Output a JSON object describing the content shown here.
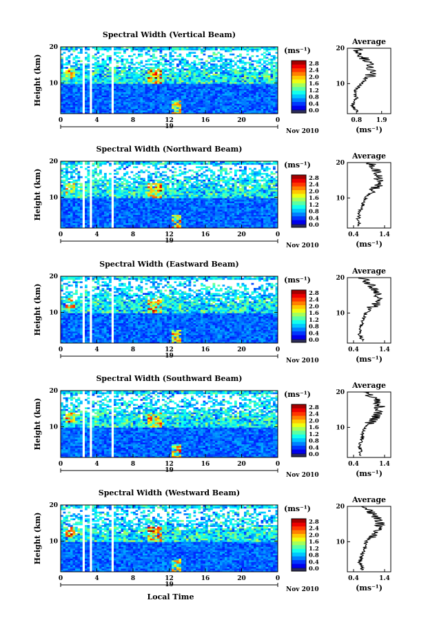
{
  "chart_data": [
    {
      "type": "heatmap",
      "title": "Spectral Width (Vertical Beam)",
      "ylabel": "Height (km)",
      "yticks": [
        10,
        20
      ],
      "xticks": [
        "0",
        "4",
        "8",
        "12",
        "16",
        "20",
        "0"
      ],
      "day_label": "19",
      "date_label": "Nov 2010",
      "colorbar_unit": "(ms⁻¹)",
      "colorbar_ticks": [
        "2.8",
        "2.4",
        "2.0",
        "1.6",
        "1.2",
        "0.8",
        "0.4",
        "0.0"
      ],
      "xlim": [
        0,
        24
      ],
      "ylim": [
        1.5,
        20
      ],
      "data_gaps_hours": [
        [
          2.3,
          2.6
        ],
        [
          3.2,
          3.5
        ],
        [
          5.5,
          5.8
        ],
        [
          17.5,
          17.7
        ]
      ],
      "profile": {
        "title": "Average",
        "xticks": [
          "0.8",
          "1.9"
        ],
        "xlim": [
          0.4,
          2.3
        ],
        "xlabel": "(ms⁻¹)",
        "yticks": [
          10,
          20
        ],
        "heights_km": [
          2,
          4,
          6,
          8,
          10,
          12,
          14,
          16,
          18,
          20
        ],
        "values": [
          0.85,
          0.6,
          0.8,
          0.75,
          1.0,
          1.4,
          1.5,
          1.3,
          1.0,
          0.8
        ]
      }
    },
    {
      "type": "heatmap",
      "title": "Spectral Width (Northward Beam)",
      "ylabel": "Height (km)",
      "yticks": [
        10,
        20
      ],
      "xticks": [
        "0",
        "4",
        "8",
        "12",
        "16",
        "20",
        "0"
      ],
      "day_label": "19",
      "date_label": "Nov 2010",
      "colorbar_unit": "(ms⁻¹)",
      "colorbar_ticks": [
        "2.8",
        "2.4",
        "2.0",
        "1.6",
        "1.2",
        "0.8",
        "0.4",
        "0.0"
      ],
      "xlim": [
        0,
        24
      ],
      "ylim": [
        1.5,
        20
      ],
      "data_gaps_hours": [
        [
          2.3,
          2.6
        ],
        [
          3.2,
          3.5
        ],
        [
          5.5,
          5.8
        ],
        [
          17.5,
          17.7
        ]
      ],
      "profile": {
        "title": "Average",
        "xticks": [
          "0.4",
          "1.4"
        ],
        "xlim": [
          0.2,
          1.6
        ],
        "xlabel": "(ms⁻¹)",
        "yticks": [
          10,
          20
        ],
        "heights_km": [
          2,
          4,
          6,
          8,
          10,
          12,
          14,
          16,
          18,
          20
        ],
        "values": [
          0.6,
          0.55,
          0.6,
          0.7,
          0.8,
          1.0,
          1.25,
          1.2,
          1.1,
          0.9
        ]
      }
    },
    {
      "type": "heatmap",
      "title": "Spectral Width (Eastward Beam)",
      "ylabel": "Height (km)",
      "yticks": [
        10,
        20
      ],
      "xticks": [
        "0",
        "4",
        "8",
        "12",
        "16",
        "20",
        "0"
      ],
      "day_label": "19",
      "date_label": "Nov 2010",
      "colorbar_unit": "(ms⁻¹)",
      "colorbar_ticks": [
        "2.8",
        "2.4",
        "2.0",
        "1.6",
        "1.2",
        "0.8",
        "0.4",
        "0.0"
      ],
      "xlim": [
        0,
        24
      ],
      "ylim": [
        1.5,
        20
      ],
      "data_gaps_hours": [
        [
          2.3,
          2.6
        ],
        [
          3.2,
          3.5
        ],
        [
          5.5,
          5.8
        ],
        [
          17.5,
          17.7
        ]
      ],
      "profile": {
        "title": "Average",
        "xticks": [
          "0.4",
          "1.4"
        ],
        "xlim": [
          0.2,
          1.6
        ],
        "xlabel": "(ms⁻¹)",
        "yticks": [
          10,
          20
        ],
        "heights_km": [
          2,
          4,
          6,
          8,
          10,
          12,
          14,
          16,
          18,
          20
        ],
        "values": [
          0.7,
          0.6,
          0.65,
          0.7,
          0.8,
          1.05,
          1.25,
          1.15,
          0.95,
          0.7
        ]
      }
    },
    {
      "type": "heatmap",
      "title": "Spectral Width (Southward Beam)",
      "ylabel": "Height (km)",
      "yticks": [
        10,
        20
      ],
      "xticks": [
        "0",
        "4",
        "8",
        "12",
        "16",
        "20",
        "0"
      ],
      "day_label": "19",
      "date_label": "Nov 2010",
      "colorbar_unit": "(ms⁻¹)",
      "colorbar_ticks": [
        "2.8",
        "2.4",
        "2.0",
        "1.6",
        "1.2",
        "0.8",
        "0.4",
        "0.0"
      ],
      "xlim": [
        0,
        24
      ],
      "ylim": [
        1.5,
        20
      ],
      "data_gaps_hours": [
        [
          2.3,
          2.6
        ],
        [
          3.2,
          3.5
        ],
        [
          5.5,
          5.8
        ],
        [
          17.5,
          17.7
        ]
      ],
      "profile": {
        "title": "Average",
        "xticks": [
          "0.4",
          "1.4"
        ],
        "xlim": [
          0.2,
          1.6
        ],
        "xlabel": "(ms⁻¹)",
        "yticks": [
          10,
          20
        ],
        "heights_km": [
          2,
          4,
          6,
          8,
          10,
          12,
          14,
          16,
          18,
          20
        ],
        "values": [
          0.65,
          0.6,
          0.65,
          0.7,
          0.75,
          1.0,
          1.2,
          1.25,
          1.1,
          0.8
        ]
      }
    },
    {
      "type": "heatmap",
      "title": "Spectral Width (Westward Beam)",
      "ylabel": "Height (km)",
      "yticks": [
        10,
        20
      ],
      "xticks": [
        "0",
        "4",
        "8",
        "12",
        "16",
        "20",
        "0"
      ],
      "day_label": "19",
      "date_label": "Nov 2010",
      "xlabel": "Local Time",
      "colorbar_unit": "(ms⁻¹)",
      "colorbar_ticks": [
        "2.8",
        "2.4",
        "2.0",
        "1.6",
        "1.2",
        "0.8",
        "0.4",
        "0.0"
      ],
      "xlim": [
        0,
        24
      ],
      "ylim": [
        1.5,
        20
      ],
      "data_gaps_hours": [
        [
          2.3,
          2.6
        ],
        [
          3.2,
          3.5
        ],
        [
          5.5,
          5.8
        ],
        [
          17.5,
          17.7
        ]
      ],
      "profile": {
        "title": "Average",
        "xticks": [
          "0.4",
          "1.4"
        ],
        "xlim": [
          0.2,
          1.6
        ],
        "xlabel": "(ms⁻¹)",
        "yticks": [
          10,
          20
        ],
        "heights_km": [
          2,
          4,
          6,
          8,
          10,
          12,
          14,
          16,
          18,
          20
        ],
        "values": [
          0.7,
          0.6,
          0.65,
          0.75,
          0.8,
          1.05,
          1.2,
          1.25,
          1.0,
          0.75
        ]
      }
    }
  ]
}
